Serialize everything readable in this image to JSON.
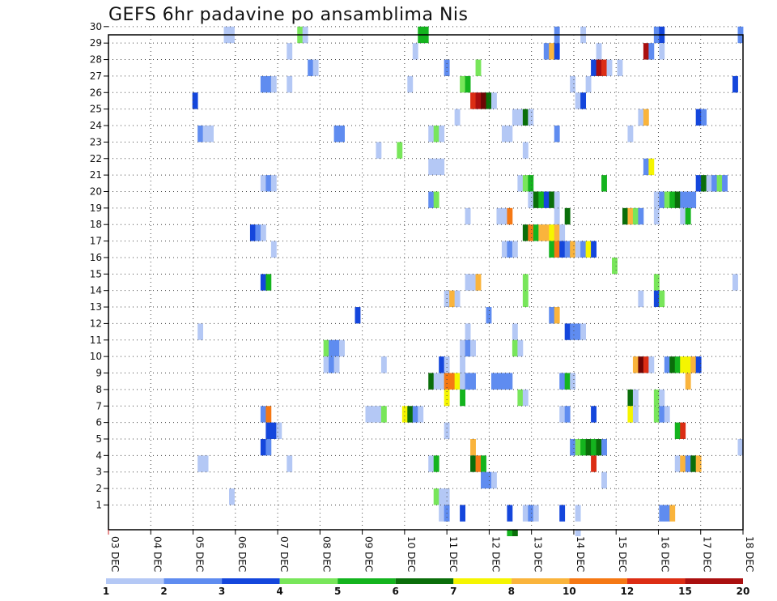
{
  "chart_data": {
    "type": "heatmap",
    "title": "GEFS 6hr padavine po ansamblima Nis",
    "xlabel": "",
    "ylabel": "",
    "x_ticks": [
      "03 DEC",
      "04 DEC",
      "05 DEC",
      "06 DEC",
      "07 DEC",
      "08 DEC",
      "09 DEC",
      "10 DEC",
      "11 DEC",
      "12 DEC",
      "13 DEC",
      "14 DEC",
      "15 DEC",
      "16 DEC",
      "17 DEC",
      "18 DEC"
    ],
    "x_range": [
      "03 DEC 00Z",
      "18 DEC 06Z"
    ],
    "y_ticks": [
      1,
      2,
      3,
      4,
      5,
      6,
      7,
      8,
      9,
      10,
      11,
      12,
      13,
      14,
      15,
      16,
      17,
      18,
      19,
      20,
      21,
      22,
      23,
      24,
      25,
      26,
      27,
      28,
      29,
      30
    ],
    "y_range": [
      0,
      30
    ],
    "grid": true,
    "colorbar": {
      "labels": [
        "1",
        "2",
        "3",
        "4",
        "5",
        "6",
        "7",
        "8",
        "10",
        "12",
        "15",
        "20"
      ],
      "colors": [
        "#b4c8f5",
        "#5f8cf0",
        "#1446dc",
        "#78e65a",
        "#14b41e",
        "#0a6e0a",
        "#f5f500",
        "#fab43c",
        "#f57814",
        "#dc2d14",
        "#aa0f0f",
        "#6e0505"
      ]
    },
    "cells_format": "[time step (6h steps since 03 DEC 00Z), member, colour class]",
    "cells": [
      [
        22,
        30,
        0
      ],
      [
        23,
        30,
        0
      ],
      [
        36,
        30,
        3
      ],
      [
        37,
        30,
        0
      ],
      [
        59,
        30,
        4
      ],
      [
        60,
        30,
        4
      ],
      [
        85,
        30,
        1
      ],
      [
        90,
        30,
        0
      ],
      [
        104,
        30,
        1
      ],
      [
        105,
        30,
        2
      ],
      [
        120,
        30,
        1
      ],
      [
        34,
        29,
        0
      ],
      [
        58,
        29,
        0
      ],
      [
        83,
        29,
        1
      ],
      [
        84,
        29,
        7
      ],
      [
        85,
        29,
        2
      ],
      [
        93,
        29,
        0
      ],
      [
        102,
        29,
        10
      ],
      [
        103,
        29,
        1
      ],
      [
        105,
        29,
        0
      ],
      [
        38,
        28,
        1
      ],
      [
        39,
        28,
        0
      ],
      [
        64,
        28,
        1
      ],
      [
        70,
        28,
        3
      ],
      [
        92,
        28,
        2
      ],
      [
        93,
        28,
        10
      ],
      [
        94,
        28,
        9
      ],
      [
        95,
        28,
        0
      ],
      [
        97,
        28,
        0
      ],
      [
        29,
        27,
        1
      ],
      [
        30,
        27,
        1
      ],
      [
        31,
        27,
        0
      ],
      [
        34,
        27,
        0
      ],
      [
        57,
        27,
        0
      ],
      [
        67,
        27,
        3
      ],
      [
        68,
        27,
        4
      ],
      [
        88,
        27,
        0
      ],
      [
        91,
        27,
        0
      ],
      [
        119,
        27,
        2
      ],
      [
        16,
        26,
        2
      ],
      [
        69,
        26,
        9
      ],
      [
        70,
        26,
        10
      ],
      [
        71,
        26,
        11
      ],
      [
        72,
        26,
        5
      ],
      [
        73,
        26,
        0
      ],
      [
        89,
        26,
        0
      ],
      [
        90,
        26,
        2
      ],
      [
        66,
        25,
        0
      ],
      [
        77,
        25,
        0
      ],
      [
        78,
        25,
        0
      ],
      [
        79,
        25,
        5
      ],
      [
        80,
        25,
        0
      ],
      [
        101,
        25,
        0
      ],
      [
        102,
        25,
        7
      ],
      [
        112,
        25,
        2
      ],
      [
        113,
        25,
        1
      ],
      [
        17,
        24,
        1
      ],
      [
        18,
        24,
        0
      ],
      [
        19,
        24,
        0
      ],
      [
        43,
        24,
        1
      ],
      [
        44,
        24,
        1
      ],
      [
        61,
        24,
        0
      ],
      [
        62,
        24,
        3
      ],
      [
        63,
        24,
        0
      ],
      [
        75,
        24,
        0
      ],
      [
        76,
        24,
        0
      ],
      [
        85,
        24,
        1
      ],
      [
        99,
        24,
        0
      ],
      [
        51,
        23,
        0
      ],
      [
        55,
        23,
        3
      ],
      [
        79,
        23,
        0
      ],
      [
        61,
        22,
        0
      ],
      [
        62,
        22,
        0
      ],
      [
        63,
        22,
        0
      ],
      [
        102,
        22,
        1
      ],
      [
        103,
        22,
        6
      ],
      [
        29,
        21,
        0
      ],
      [
        30,
        21,
        1
      ],
      [
        31,
        21,
        0
      ],
      [
        78,
        21,
        0
      ],
      [
        79,
        21,
        3
      ],
      [
        80,
        21,
        4
      ],
      [
        94,
        21,
        4
      ],
      [
        112,
        21,
        2
      ],
      [
        113,
        21,
        5
      ],
      [
        114,
        21,
        0
      ],
      [
        115,
        21,
        1
      ],
      [
        116,
        21,
        3
      ],
      [
        117,
        21,
        1
      ],
      [
        61,
        20,
        1
      ],
      [
        62,
        20,
        3
      ],
      [
        80,
        20,
        0
      ],
      [
        81,
        20,
        5
      ],
      [
        82,
        20,
        4
      ],
      [
        83,
        20,
        2
      ],
      [
        84,
        20,
        5
      ],
      [
        85,
        20,
        0
      ],
      [
        104,
        20,
        0
      ],
      [
        105,
        20,
        1
      ],
      [
        106,
        20,
        3
      ],
      [
        107,
        20,
        4
      ],
      [
        108,
        20,
        5
      ],
      [
        109,
        20,
        1
      ],
      [
        110,
        20,
        1
      ],
      [
        111,
        20,
        1
      ],
      [
        68,
        19,
        0
      ],
      [
        74,
        19,
        0
      ],
      [
        75,
        19,
        0
      ],
      [
        76,
        19,
        8
      ],
      [
        85,
        19,
        0
      ],
      [
        87,
        19,
        5
      ],
      [
        98,
        19,
        5
      ],
      [
        99,
        19,
        7
      ],
      [
        100,
        19,
        3
      ],
      [
        101,
        19,
        1
      ],
      [
        104,
        19,
        0
      ],
      [
        109,
        19,
        0
      ],
      [
        110,
        19,
        4
      ],
      [
        27,
        18,
        2
      ],
      [
        28,
        18,
        1
      ],
      [
        29,
        18,
        0
      ],
      [
        79,
        18,
        5
      ],
      [
        80,
        18,
        8
      ],
      [
        81,
        18,
        4
      ],
      [
        82,
        18,
        7
      ],
      [
        83,
        18,
        7
      ],
      [
        84,
        18,
        6
      ],
      [
        85,
        18,
        7
      ],
      [
        86,
        18,
        0
      ],
      [
        31,
        17,
        0
      ],
      [
        75,
        17,
        0
      ],
      [
        76,
        17,
        1
      ],
      [
        77,
        17,
        0
      ],
      [
        84,
        17,
        4
      ],
      [
        85,
        17,
        8
      ],
      [
        86,
        17,
        2
      ],
      [
        87,
        17,
        1
      ],
      [
        88,
        17,
        7
      ],
      [
        89,
        17,
        0
      ],
      [
        90,
        17,
        1
      ],
      [
        91,
        17,
        6
      ],
      [
        92,
        17,
        2
      ],
      [
        96,
        16,
        3
      ],
      [
        29,
        15,
        2
      ],
      [
        30,
        15,
        4
      ],
      [
        68,
        15,
        0
      ],
      [
        69,
        15,
        0
      ],
      [
        70,
        15,
        7
      ],
      [
        79,
        15,
        3
      ],
      [
        104,
        15,
        3
      ],
      [
        119,
        15,
        0
      ],
      [
        64,
        14,
        0
      ],
      [
        65,
        14,
        7
      ],
      [
        66,
        14,
        0
      ],
      [
        79,
        14,
        3
      ],
      [
        101,
        14,
        0
      ],
      [
        104,
        14,
        2
      ],
      [
        105,
        14,
        3
      ],
      [
        47,
        13,
        2
      ],
      [
        72,
        13,
        1
      ],
      [
        84,
        13,
        1
      ],
      [
        85,
        13,
        7
      ],
      [
        17,
        12,
        0
      ],
      [
        68,
        12,
        0
      ],
      [
        77,
        12,
        0
      ],
      [
        87,
        12,
        2
      ],
      [
        88,
        12,
        1
      ],
      [
        89,
        12,
        1
      ],
      [
        90,
        12,
        0
      ],
      [
        41,
        11,
        3
      ],
      [
        42,
        11,
        1
      ],
      [
        43,
        11,
        1
      ],
      [
        44,
        11,
        0
      ],
      [
        67,
        11,
        0
      ],
      [
        68,
        11,
        1
      ],
      [
        69,
        11,
        0
      ],
      [
        77,
        11,
        3
      ],
      [
        78,
        11,
        0
      ],
      [
        41,
        10,
        0
      ],
      [
        42,
        10,
        1
      ],
      [
        43,
        10,
        0
      ],
      [
        52,
        10,
        0
      ],
      [
        63,
        10,
        2
      ],
      [
        64,
        10,
        0
      ],
      [
        67,
        10,
        0
      ],
      [
        100,
        10,
        7
      ],
      [
        101,
        10,
        11
      ],
      [
        102,
        10,
        9
      ],
      [
        103,
        10,
        0
      ],
      [
        106,
        10,
        1
      ],
      [
        107,
        10,
        5
      ],
      [
        108,
        10,
        4
      ],
      [
        109,
        10,
        6
      ],
      [
        110,
        10,
        6
      ],
      [
        111,
        10,
        7
      ],
      [
        112,
        10,
        2
      ],
      [
        61,
        9,
        5
      ],
      [
        62,
        9,
        0
      ],
      [
        63,
        9,
        0
      ],
      [
        64,
        9,
        8
      ],
      [
        65,
        9,
        8
      ],
      [
        66,
        9,
        6
      ],
      [
        67,
        9,
        0
      ],
      [
        68,
        9,
        1
      ],
      [
        69,
        9,
        1
      ],
      [
        73,
        9,
        1
      ],
      [
        74,
        9,
        1
      ],
      [
        75,
        9,
        1
      ],
      [
        76,
        9,
        1
      ],
      [
        86,
        9,
        1
      ],
      [
        87,
        9,
        4
      ],
      [
        88,
        9,
        0
      ],
      [
        110,
        9,
        7
      ],
      [
        64,
        8,
        6
      ],
      [
        67,
        8,
        4
      ],
      [
        78,
        8,
        3
      ],
      [
        79,
        8,
        0
      ],
      [
        99,
        8,
        5
      ],
      [
        100,
        8,
        0
      ],
      [
        104,
        8,
        3
      ],
      [
        105,
        8,
        0
      ],
      [
        29,
        7,
        1
      ],
      [
        30,
        7,
        8
      ],
      [
        49,
        7,
        0
      ],
      [
        50,
        7,
        0
      ],
      [
        51,
        7,
        0
      ],
      [
        52,
        7,
        3
      ],
      [
        56,
        7,
        6
      ],
      [
        57,
        7,
        5
      ],
      [
        58,
        7,
        1
      ],
      [
        59,
        7,
        0
      ],
      [
        86,
        7,
        0
      ],
      [
        87,
        7,
        1
      ],
      [
        92,
        7,
        2
      ],
      [
        99,
        7,
        6
      ],
      [
        100,
        7,
        0
      ],
      [
        104,
        7,
        3
      ],
      [
        105,
        7,
        1
      ],
      [
        106,
        7,
        0
      ],
      [
        30,
        6,
        2
      ],
      [
        31,
        6,
        2
      ],
      [
        32,
        6,
        0
      ],
      [
        64,
        6,
        0
      ],
      [
        108,
        6,
        4
      ],
      [
        109,
        6,
        9
      ],
      [
        29,
        5,
        2
      ],
      [
        30,
        5,
        1
      ],
      [
        69,
        5,
        7
      ],
      [
        88,
        5,
        1
      ],
      [
        89,
        5,
        3
      ],
      [
        90,
        5,
        4
      ],
      [
        91,
        5,
        5
      ],
      [
        92,
        5,
        4
      ],
      [
        93,
        5,
        5
      ],
      [
        94,
        5,
        1
      ],
      [
        120,
        5,
        0
      ],
      [
        17,
        4,
        0
      ],
      [
        18,
        4,
        0
      ],
      [
        34,
        4,
        0
      ],
      [
        61,
        4,
        0
      ],
      [
        62,
        4,
        4
      ],
      [
        69,
        4,
        5
      ],
      [
        70,
        4,
        8
      ],
      [
        71,
        4,
        4
      ],
      [
        92,
        4,
        9
      ],
      [
        108,
        4,
        0
      ],
      [
        109,
        4,
        7
      ],
      [
        110,
        4,
        1
      ],
      [
        111,
        4,
        5
      ],
      [
        112,
        4,
        7
      ],
      [
        71,
        3,
        1
      ],
      [
        72,
        3,
        1
      ],
      [
        73,
        3,
        0
      ],
      [
        94,
        3,
        0
      ],
      [
        23,
        2,
        0
      ],
      [
        62,
        2,
        3
      ],
      [
        63,
        2,
        0
      ],
      [
        64,
        2,
        0
      ],
      [
        63,
        1,
        0
      ],
      [
        64,
        1,
        1
      ],
      [
        67,
        1,
        2
      ],
      [
        76,
        1,
        2
      ],
      [
        79,
        1,
        0
      ],
      [
        80,
        1,
        1
      ],
      [
        81,
        1,
        0
      ],
      [
        86,
        1,
        2
      ],
      [
        89,
        1,
        0
      ],
      [
        105,
        1,
        1
      ],
      [
        106,
        1,
        1
      ],
      [
        107,
        1,
        7
      ],
      [
        76,
        0,
        4
      ],
      [
        77,
        0,
        5
      ],
      [
        89,
        0,
        0
      ]
    ]
  }
}
